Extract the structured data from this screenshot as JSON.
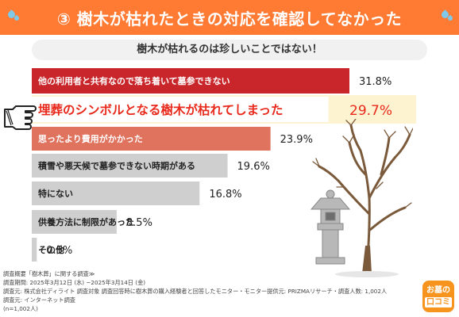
{
  "header": {
    "title": "③ 樹木が枯れたときの対応を確認してなかった"
  },
  "subtitle": "樹木が枯れるのは珍しいことではない！",
  "chart_data": {
    "type": "bar",
    "orientation": "horizontal",
    "categories": [
      "他の利用者と共有なので落ち着いて墓参できない",
      "埋葬のシンボルとなる樹木が枯れてしまった",
      "思ったより費用がかかった",
      "積雪や悪天候で墓参できない時期がある",
      "特にない",
      "供養方法に制限があった",
      "その他"
    ],
    "values": [
      31.8,
      29.7,
      23.9,
      19.6,
      16.8,
      8.5,
      0.5
    ],
    "value_labels": [
      "31.8%",
      "29.7%",
      "23.9%",
      "19.6%",
      "16.8%",
      "8.5%",
      "0.5%"
    ],
    "highlight_index": 1,
    "colors": {
      "top": "#c8262a",
      "highlight": "#e8291c",
      "highlight_bg": "#fdf3d0",
      "third": "#e0735e",
      "rest": "#cfcfcf"
    },
    "xlim": [
      0,
      40
    ]
  },
  "footnote": {
    "lines": [
      "調査概要「樹木葬」に関する調査≫",
      "調査期間: 2025年3月12日 (水) ~2025年3月14日 (金)",
      "調査元: 株式会社ディライト 調査対象 調査回答時に樹木葬の購入経験者と回答したモニター・モニター提供元: PRIZMAリサーチ・調査人数: 1,002人",
      "調査元: インターネット調査",
      "(n=1,002人)"
    ]
  },
  "logo": {
    "line1": "お墓の",
    "line2": "口コミ"
  }
}
